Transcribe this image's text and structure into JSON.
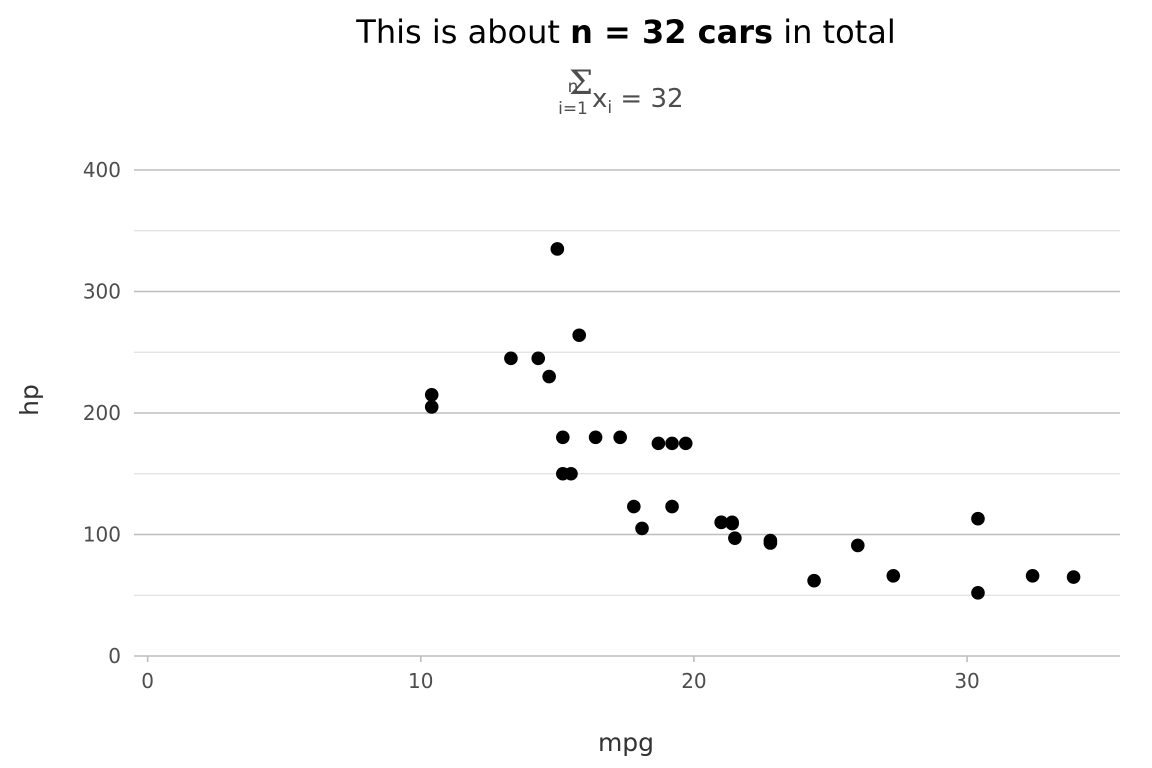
{
  "chart_data": {
    "type": "scatter",
    "title": {
      "prefix": "This is about ",
      "bold": "n = 32 cars",
      "suffix": " in total"
    },
    "subtitle": {
      "upper_limit": "n",
      "sum_symbol": "Σ",
      "lower_limit": "i=1",
      "variable": "x",
      "variable_subscript": "i",
      "equals_text": " = 32"
    },
    "xlabel": "mpg",
    "ylabel": "hp",
    "xlim": [
      -0.5,
      35.6
    ],
    "ylim": [
      0,
      400
    ],
    "x_ticks": [
      0,
      10,
      20,
      30
    ],
    "y_ticks": [
      0,
      100,
      200,
      300,
      400
    ],
    "y_minor_ticks": [
      50,
      150,
      250,
      350
    ],
    "grid": true,
    "point_color": "#000000",
    "points": [
      {
        "x": 21.0,
        "y": 110
      },
      {
        "x": 21.0,
        "y": 110
      },
      {
        "x": 22.8,
        "y": 93
      },
      {
        "x": 21.4,
        "y": 110
      },
      {
        "x": 18.7,
        "y": 175
      },
      {
        "x": 18.1,
        "y": 105
      },
      {
        "x": 14.3,
        "y": 245
      },
      {
        "x": 24.4,
        "y": 62
      },
      {
        "x": 22.8,
        "y": 95
      },
      {
        "x": 19.2,
        "y": 123
      },
      {
        "x": 17.8,
        "y": 123
      },
      {
        "x": 16.4,
        "y": 180
      },
      {
        "x": 17.3,
        "y": 180
      },
      {
        "x": 15.2,
        "y": 180
      },
      {
        "x": 10.4,
        "y": 205
      },
      {
        "x": 10.4,
        "y": 215
      },
      {
        "x": 14.7,
        "y": 230
      },
      {
        "x": 32.4,
        "y": 66
      },
      {
        "x": 30.4,
        "y": 52
      },
      {
        "x": 33.9,
        "y": 65
      },
      {
        "x": 21.5,
        "y": 97
      },
      {
        "x": 15.5,
        "y": 150
      },
      {
        "x": 15.2,
        "y": 150
      },
      {
        "x": 13.3,
        "y": 245
      },
      {
        "x": 19.2,
        "y": 175
      },
      {
        "x": 27.3,
        "y": 66
      },
      {
        "x": 26.0,
        "y": 91
      },
      {
        "x": 30.4,
        "y": 113
      },
      {
        "x": 15.8,
        "y": 264
      },
      {
        "x": 19.7,
        "y": 175
      },
      {
        "x": 15.0,
        "y": 335
      },
      {
        "x": 21.4,
        "y": 109
      }
    ]
  }
}
